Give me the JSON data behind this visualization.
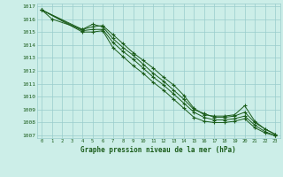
{
  "xlabel": "Graphe pression niveau de la mer (hPa)",
  "bg_color": "#cceee8",
  "grid_color": "#99cccc",
  "line_color": "#1a5c1a",
  "xlim": [
    -0.5,
    23.5
  ],
  "ylim": [
    1006.8,
    1017.2
  ],
  "yticks": [
    1007,
    1008,
    1009,
    1010,
    1011,
    1012,
    1013,
    1014,
    1015,
    1016,
    1017
  ],
  "xticks": [
    0,
    1,
    2,
    3,
    4,
    5,
    6,
    7,
    8,
    9,
    10,
    11,
    12,
    13,
    14,
    15,
    16,
    17,
    18,
    19,
    20,
    21,
    22,
    23
  ],
  "lines": [
    {
      "x": [
        0,
        1,
        4,
        5,
        6,
        7,
        8,
        9,
        10,
        11,
        12,
        13,
        14,
        15,
        16,
        17,
        18,
        19,
        20,
        21,
        22,
        23
      ],
      "y": [
        1016.7,
        1016.0,
        1015.2,
        1015.4,
        1015.5,
        1014.8,
        1014.1,
        1013.4,
        1012.8,
        1012.2,
        1011.5,
        1010.9,
        1010.1,
        1009.1,
        1008.6,
        1008.5,
        1008.5,
        1008.6,
        1009.3,
        1008.1,
        1007.5,
        1007.1
      ]
    },
    {
      "x": [
        0,
        4,
        5,
        6,
        7,
        8,
        9,
        10,
        11,
        12,
        13,
        14,
        15,
        16,
        17,
        18,
        19,
        20,
        21,
        22,
        23
      ],
      "y": [
        1016.7,
        1015.2,
        1015.6,
        1015.4,
        1014.5,
        1013.8,
        1013.2,
        1012.5,
        1011.8,
        1011.2,
        1010.5,
        1009.8,
        1009.0,
        1008.7,
        1008.4,
        1008.4,
        1008.5,
        1008.8,
        1008.0,
        1007.5,
        1007.1
      ]
    },
    {
      "x": [
        0,
        4,
        5,
        6,
        7,
        8,
        9,
        10,
        11,
        12,
        13,
        14,
        15,
        16,
        17,
        18,
        19,
        20,
        21,
        22,
        23
      ],
      "y": [
        1016.7,
        1015.1,
        1015.2,
        1015.2,
        1014.2,
        1013.5,
        1012.9,
        1012.2,
        1011.5,
        1010.9,
        1010.2,
        1009.5,
        1008.8,
        1008.4,
        1008.2,
        1008.2,
        1008.3,
        1008.5,
        1007.8,
        1007.3,
        1007.0
      ]
    },
    {
      "x": [
        0,
        4,
        5,
        6,
        7,
        8,
        9,
        10,
        11,
        12,
        13,
        14,
        15,
        16,
        17,
        18,
        19,
        20,
        21,
        22,
        23
      ],
      "y": [
        1016.7,
        1015.0,
        1015.0,
        1015.1,
        1013.8,
        1013.1,
        1012.4,
        1011.8,
        1011.1,
        1010.5,
        1009.8,
        1009.1,
        1008.4,
        1008.1,
        1008.0,
        1008.0,
        1008.1,
        1008.3,
        1007.6,
        1007.2,
        1007.0
      ]
    }
  ]
}
